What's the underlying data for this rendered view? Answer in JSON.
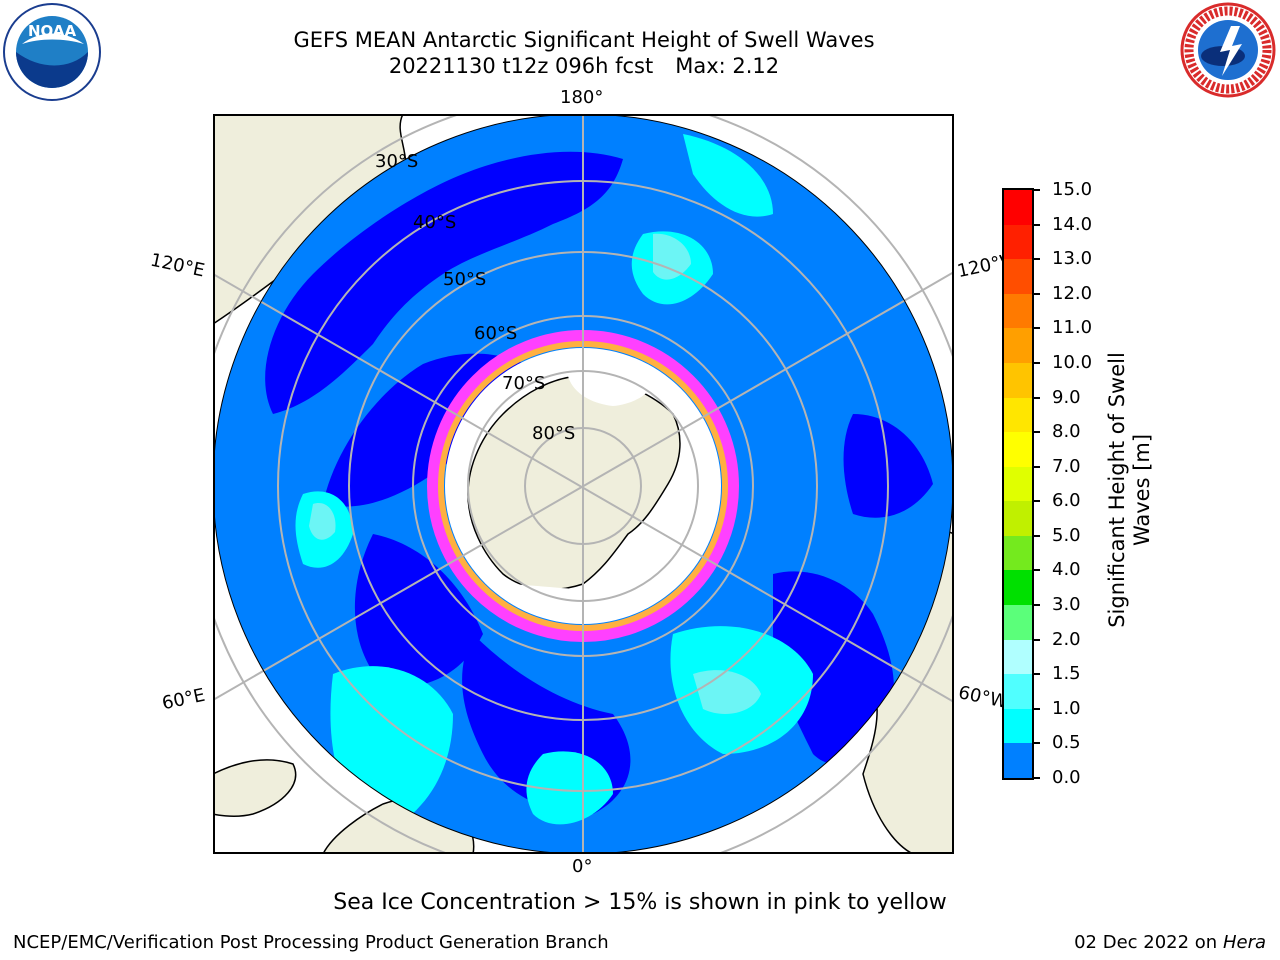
{
  "title": {
    "line1": "GEFS MEAN Antarctic Significant Height of Swell Waves",
    "run": "20221130 t12z 096h fcst",
    "max": "Max: 2.12"
  },
  "map": {
    "projection": "south polar stereographic",
    "lon_labels": {
      "top": "180°",
      "bottom": "0°",
      "left_upper": "120°E",
      "right_upper": "120°W",
      "left_lower": "60°E",
      "right_lower": "60°W"
    },
    "lat_labels": [
      "30°S",
      "40°S",
      "50°S",
      "60°S",
      "70°S",
      "80°S"
    ]
  },
  "colorbar": {
    "title_line1": "Significant Height of Swell",
    "title_line2": "Waves [m]",
    "ticks": [
      "15.0",
      "14.0",
      "13.0",
      "12.0",
      "11.0",
      "10.0",
      "9.0",
      "8.0",
      "7.0",
      "6.0",
      "5.0",
      "4.0",
      "3.0",
      "2.0",
      "1.5",
      "1.0",
      "0.5",
      "0.0"
    ],
    "colors": [
      "#ff0000",
      "#ff2000",
      "#ff4e00",
      "#ff7a00",
      "#ff9f00",
      "#ffc400",
      "#ffe600",
      "#ffff00",
      "#e0ff00",
      "#c0f000",
      "#74ea1e",
      "#00e000",
      "#00d040",
      "#5bff7a",
      "#b0ffff",
      "#50ffff",
      "#00ffff",
      "#0080ff",
      "#0000ff"
    ]
  },
  "footnote": "Sea Ice Concentration > 15% is shown in pink to yellow",
  "credit": "NCEP/EMC/Verification Post Processing Product Generation Branch",
  "date": {
    "text": "02 Dec 2022 on",
    "machine": "Hera"
  },
  "logos": {
    "left": "NOAA",
    "right": "NATIONAL WEATHER SERVICE"
  }
}
